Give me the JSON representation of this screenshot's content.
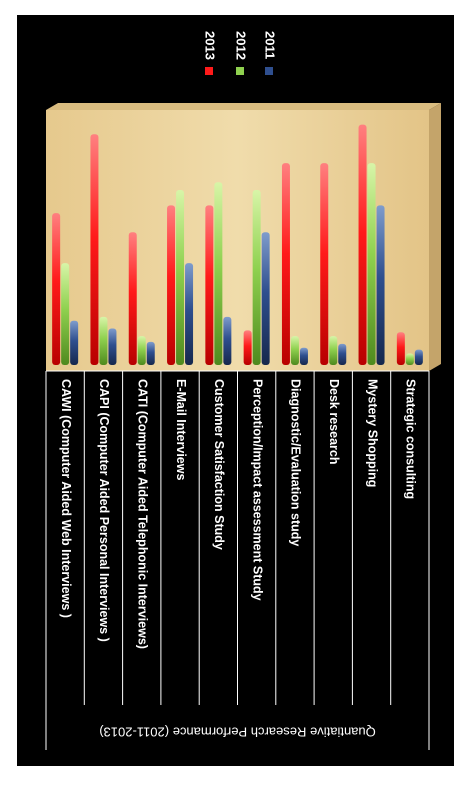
{
  "chart_data": {
    "type": "bar",
    "orientation": "rotated-90",
    "title": "Quantiative Research Performance (2011-2013)",
    "categories": [
      "CAWI (Computer Aided Web Interviews )",
      "CAPI  (Computer Aided Personal Interviews )",
      "CATI  (Computer Aided Telephonic Interviews)",
      "E-Mail Interviews",
      "Customer Satisfaction Study",
      "Perception/Impact assessment  Study",
      "Diagnostic/Evaluation study",
      "Desk research",
      "Mystery Shopping",
      "Strategic consulting"
    ],
    "series": [
      {
        "name": "2013",
        "color": "#ff1a1a",
        "values": [
          39.5,
          60,
          34.5,
          41.5,
          41.5,
          9,
          52.5,
          52.5,
          62.5,
          8.5
        ]
      },
      {
        "name": "2012",
        "color": "#8fd14f",
        "values": [
          26.5,
          12.5,
          7.5,
          45.5,
          47.5,
          45.5,
          7.5,
          7.5,
          52.5,
          3
        ]
      },
      {
        "name": "2011",
        "color": "#2f4f8f",
        "values": [
          11.5,
          9.5,
          6,
          26.5,
          12.5,
          34.5,
          4.5,
          5.5,
          41.5,
          4
        ]
      }
    ],
    "ylim": [
      0,
      65
    ],
    "grid": false,
    "legend_position": "top-right"
  }
}
